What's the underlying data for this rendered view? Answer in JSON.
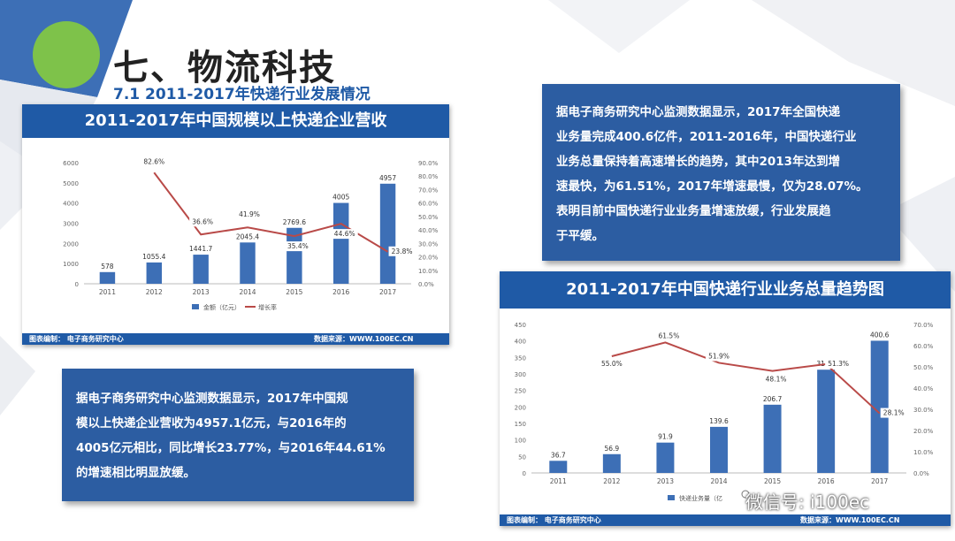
{
  "title": "七、物流科技",
  "subtitle": "7.1  2011-2017年快递行业发展情况",
  "left_panel": {
    "heading": "2011-2017年中国规模以上快递企业营收",
    "footer_left": "图表编制：    电子商务研究中心",
    "footer_right": "数据来源：WWW.100EC.CN"
  },
  "right_panel": {
    "heading": "2011-2017年中国快递行业业务总量趋势图",
    "footer_left": "图表编制：    电子商务研究中心",
    "footer_right": "数据来源：WWW.100EC.CN"
  },
  "textbox_top": {
    "lines": [
      "据电子商务研究中心监测数据显示，2017年全国快递",
      "业务量完成400.6亿件，2011-2016年，中国快递行业",
      "业务总量保持着高速增长的趋势，其中2013年达到增",
      "速最快，为61.51%，2017年增速最慢，仅为28.07%。",
      "表明目前中国快递行业业务量增速放缓，行业发展趋",
      "于平缓。"
    ]
  },
  "textbox_bottom": {
    "lines": [
      "据电子商务研究中心监测数据显示，2017年中国规",
      "模以上快递企业营收为4957.1亿元，与2016年的",
      "4005亿元相比，同比增长23.77%，与2016年44.61%",
      "的增速相比明显放缓。"
    ]
  },
  "watermark": "微信号: i100ec",
  "colors": {
    "bar": "#3d6fb6",
    "line": "#b94a48",
    "header": "#1f5aa6",
    "textbox": "#2c5da2"
  },
  "chart_data": [
    {
      "type": "bar",
      "title": "2011-2017年中国规模以上快递企业营收",
      "categories": [
        "2011",
        "2012",
        "2013",
        "2014",
        "2015",
        "2016",
        "2017"
      ],
      "series": [
        {
          "name": "金额（亿元）",
          "kind": "bar",
          "axis": "left",
          "values": [
            578,
            1055.4,
            1441.7,
            2045.4,
            2769.6,
            4005,
            4957
          ],
          "labels": [
            "578",
            "1055.4",
            "1441.7",
            "2045.4",
            "2769.6",
            "4005",
            "4957"
          ]
        },
        {
          "name": "增长率",
          "kind": "line",
          "axis": "right",
          "values": [
            null,
            82.6,
            36.6,
            41.9,
            35.4,
            44.6,
            23.8
          ],
          "labels": [
            "",
            "82.6%",
            "36.6%",
            "41.9%",
            "35.4%",
            "44.6%",
            "23.8%"
          ]
        }
      ],
      "y_left": {
        "ticks": [
          "0",
          "1000",
          "2000",
          "3000",
          "4000",
          "5000",
          "6000"
        ],
        "ylim": [
          0,
          6000
        ]
      },
      "y_right": {
        "ticks": [
          "0.0%",
          "10.0%",
          "20.0%",
          "30.0%",
          "40.0%",
          "50.0%",
          "60.0%",
          "70.0%",
          "80.0%",
          "90.0%"
        ],
        "ylim": [
          0,
          90
        ]
      },
      "legend": [
        "金额（亿元）",
        "增长率"
      ],
      "legend_position": "bottom",
      "grid": false
    },
    {
      "type": "bar",
      "title": "2011-2017年中国快递行业业务总量趋势图",
      "categories": [
        "2011",
        "2012",
        "2013",
        "2014",
        "2015",
        "2016",
        "2017"
      ],
      "series": [
        {
          "name": "快递业务量（亿",
          "kind": "bar",
          "axis": "left",
          "values": [
            36.7,
            56.9,
            91.9,
            139.6,
            206.7,
            312.8,
            400.6
          ],
          "labels": [
            "36.7",
            "56.9",
            "91.9",
            "139.6",
            "206.7",
            "312.8",
            "400.6"
          ]
        },
        {
          "name": "",
          "kind": "line",
          "axis": "right",
          "values": [
            null,
            55.0,
            61.5,
            51.9,
            48.1,
            51.3,
            28.1
          ],
          "labels": [
            "",
            "55.0%",
            "61.5%",
            "51.9%",
            "48.1%",
            "51.3%",
            "28.1%"
          ]
        }
      ],
      "y_left": {
        "ticks": [
          "0",
          "50",
          "100",
          "150",
          "200",
          "250",
          "300",
          "350",
          "400",
          "450"
        ],
        "ylim": [
          0,
          450
        ]
      },
      "y_right": {
        "ticks": [
          "0.0%",
          "10.0%",
          "20.0%",
          "30.0%",
          "40.0%",
          "50.0%",
          "60.0%",
          "70.0%"
        ],
        "ylim": [
          0,
          70
        ]
      },
      "legend": [
        "快递业务量（亿"
      ],
      "legend_position": "bottom",
      "grid": false
    }
  ]
}
